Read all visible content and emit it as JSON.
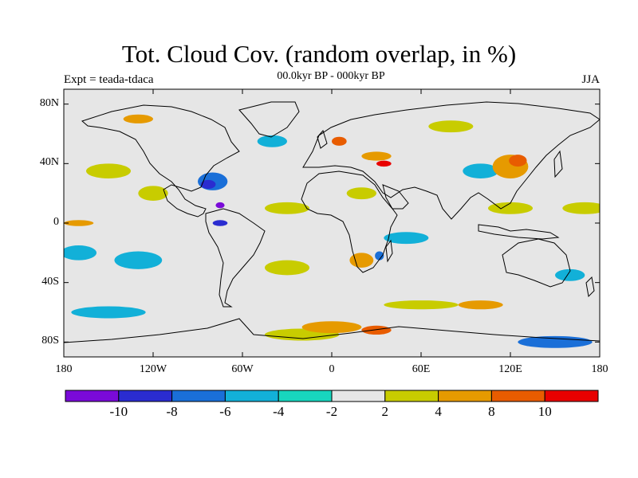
{
  "title": "Tot. Cloud Cov. (random overlap, in %)",
  "subtitle": "00.0kyr BP - 000kyr BP",
  "experiment": "Expt = teada-tdaca",
  "season": "JJA",
  "map": {
    "projection": "cylindrical equidistant",
    "lon_range": [
      -180,
      180
    ],
    "lat_range": [
      -90,
      90
    ],
    "lat_ticks": [
      {
        "value": 80,
        "label": "80N"
      },
      {
        "value": 40,
        "label": "40N"
      },
      {
        "value": 0,
        "label": "0"
      },
      {
        "value": -40,
        "label": "40S"
      },
      {
        "value": -80,
        "label": "80S"
      }
    ],
    "lon_ticks": [
      {
        "value": -180,
        "label": "180"
      },
      {
        "value": -120,
        "label": "120W"
      },
      {
        "value": -60,
        "label": "60W"
      },
      {
        "value": 0,
        "label": "0"
      },
      {
        "value": 60,
        "label": "60E"
      },
      {
        "value": 120,
        "label": "120E"
      },
      {
        "value": 180,
        "label": "180"
      }
    ],
    "background_color": "#e6e6e6",
    "anomaly_patches": [
      {
        "lon": -170,
        "lat": -20,
        "rlon": 12,
        "rlat": 5,
        "level": "-4"
      },
      {
        "lon": -130,
        "lat": -25,
        "rlon": 16,
        "rlat": 6,
        "level": "-4"
      },
      {
        "lon": -150,
        "lat": -60,
        "rlon": 25,
        "rlat": 4,
        "level": "-4"
      },
      {
        "lon": -80,
        "lat": 28,
        "rlon": 10,
        "rlat": 6,
        "level": "-6"
      },
      {
        "lon": -83,
        "lat": 26,
        "rlon": 5,
        "rlat": 3,
        "level": "-8"
      },
      {
        "lon": -75,
        "lat": 12,
        "rlon": 3,
        "rlat": 2,
        "level": "-10"
      },
      {
        "lon": -75,
        "lat": 0,
        "rlon": 5,
        "rlat": 2,
        "level": "-8"
      },
      {
        "lon": -40,
        "lat": 55,
        "rlon": 10,
        "rlat": 4,
        "level": "-4"
      },
      {
        "lon": 50,
        "lat": -10,
        "rlon": 15,
        "rlat": 4,
        "level": "-4"
      },
      {
        "lon": 32,
        "lat": -22,
        "rlon": 3,
        "rlat": 3,
        "level": "-6"
      },
      {
        "lon": 150,
        "lat": -80,
        "rlon": 25,
        "rlat": 4,
        "level": "-6"
      },
      {
        "lon": 160,
        "lat": -35,
        "rlon": 10,
        "rlat": 4,
        "level": "-4"
      },
      {
        "lon": 100,
        "lat": 35,
        "rlon": 12,
        "rlat": 5,
        "level": "-4"
      },
      {
        "lon": -150,
        "lat": 35,
        "rlon": 15,
        "rlat": 5,
        "level": "2"
      },
      {
        "lon": -120,
        "lat": 20,
        "rlon": 10,
        "rlat": 5,
        "level": "2"
      },
      {
        "lon": -30,
        "lat": 10,
        "rlon": 15,
        "rlat": 4,
        "level": "2"
      },
      {
        "lon": -30,
        "lat": -30,
        "rlon": 15,
        "rlat": 5,
        "level": "2"
      },
      {
        "lon": 20,
        "lat": 20,
        "rlon": 10,
        "rlat": 4,
        "level": "2"
      },
      {
        "lon": 80,
        "lat": 65,
        "rlon": 15,
        "rlat": 4,
        "level": "2"
      },
      {
        "lon": 120,
        "lat": 10,
        "rlon": 15,
        "rlat": 4,
        "level": "2"
      },
      {
        "lon": 170,
        "lat": 10,
        "rlon": 15,
        "rlat": 4,
        "level": "2"
      },
      {
        "lon": 60,
        "lat": -55,
        "rlon": 25,
        "rlat": 3,
        "level": "2"
      },
      {
        "lon": -20,
        "lat": -75,
        "rlon": 25,
        "rlat": 4,
        "level": "2"
      },
      {
        "lon": -170,
        "lat": 0,
        "rlon": 10,
        "rlat": 2,
        "level": "4"
      },
      {
        "lon": 30,
        "lat": 45,
        "rlon": 10,
        "rlat": 3,
        "level": "4"
      },
      {
        "lon": 120,
        "lat": 38,
        "rlon": 12,
        "rlat": 8,
        "level": "4"
      },
      {
        "lon": 125,
        "lat": 42,
        "rlon": 6,
        "rlat": 4,
        "level": "8"
      },
      {
        "lon": 35,
        "lat": 40,
        "rlon": 5,
        "rlat": 2,
        "level": "10"
      },
      {
        "lon": 5,
        "lat": 55,
        "rlon": 5,
        "rlat": 3,
        "level": "8"
      },
      {
        "lon": 20,
        "lat": -25,
        "rlon": 8,
        "rlat": 5,
        "level": "4"
      },
      {
        "lon": 0,
        "lat": -70,
        "rlon": 20,
        "rlat": 4,
        "level": "4"
      },
      {
        "lon": 30,
        "lat": -72,
        "rlon": 10,
        "rlat": 3,
        "level": "8"
      },
      {
        "lon": 100,
        "lat": -55,
        "rlon": 15,
        "rlat": 3,
        "level": "4"
      },
      {
        "lon": -130,
        "lat": 70,
        "rlon": 10,
        "rlat": 3,
        "level": "4"
      }
    ]
  },
  "colorbar": {
    "colors": [
      "#7a0ad8",
      "#2a2cd0",
      "#1a6fd8",
      "#12b0d8",
      "#18d6be",
      "#e6e6e6",
      "#c8cc00",
      "#e69a00",
      "#e85c00",
      "#e80000"
    ],
    "levels": [
      "-10",
      "-8",
      "-6",
      "-4",
      "-2",
      "2",
      "4",
      "8",
      "10"
    ]
  }
}
